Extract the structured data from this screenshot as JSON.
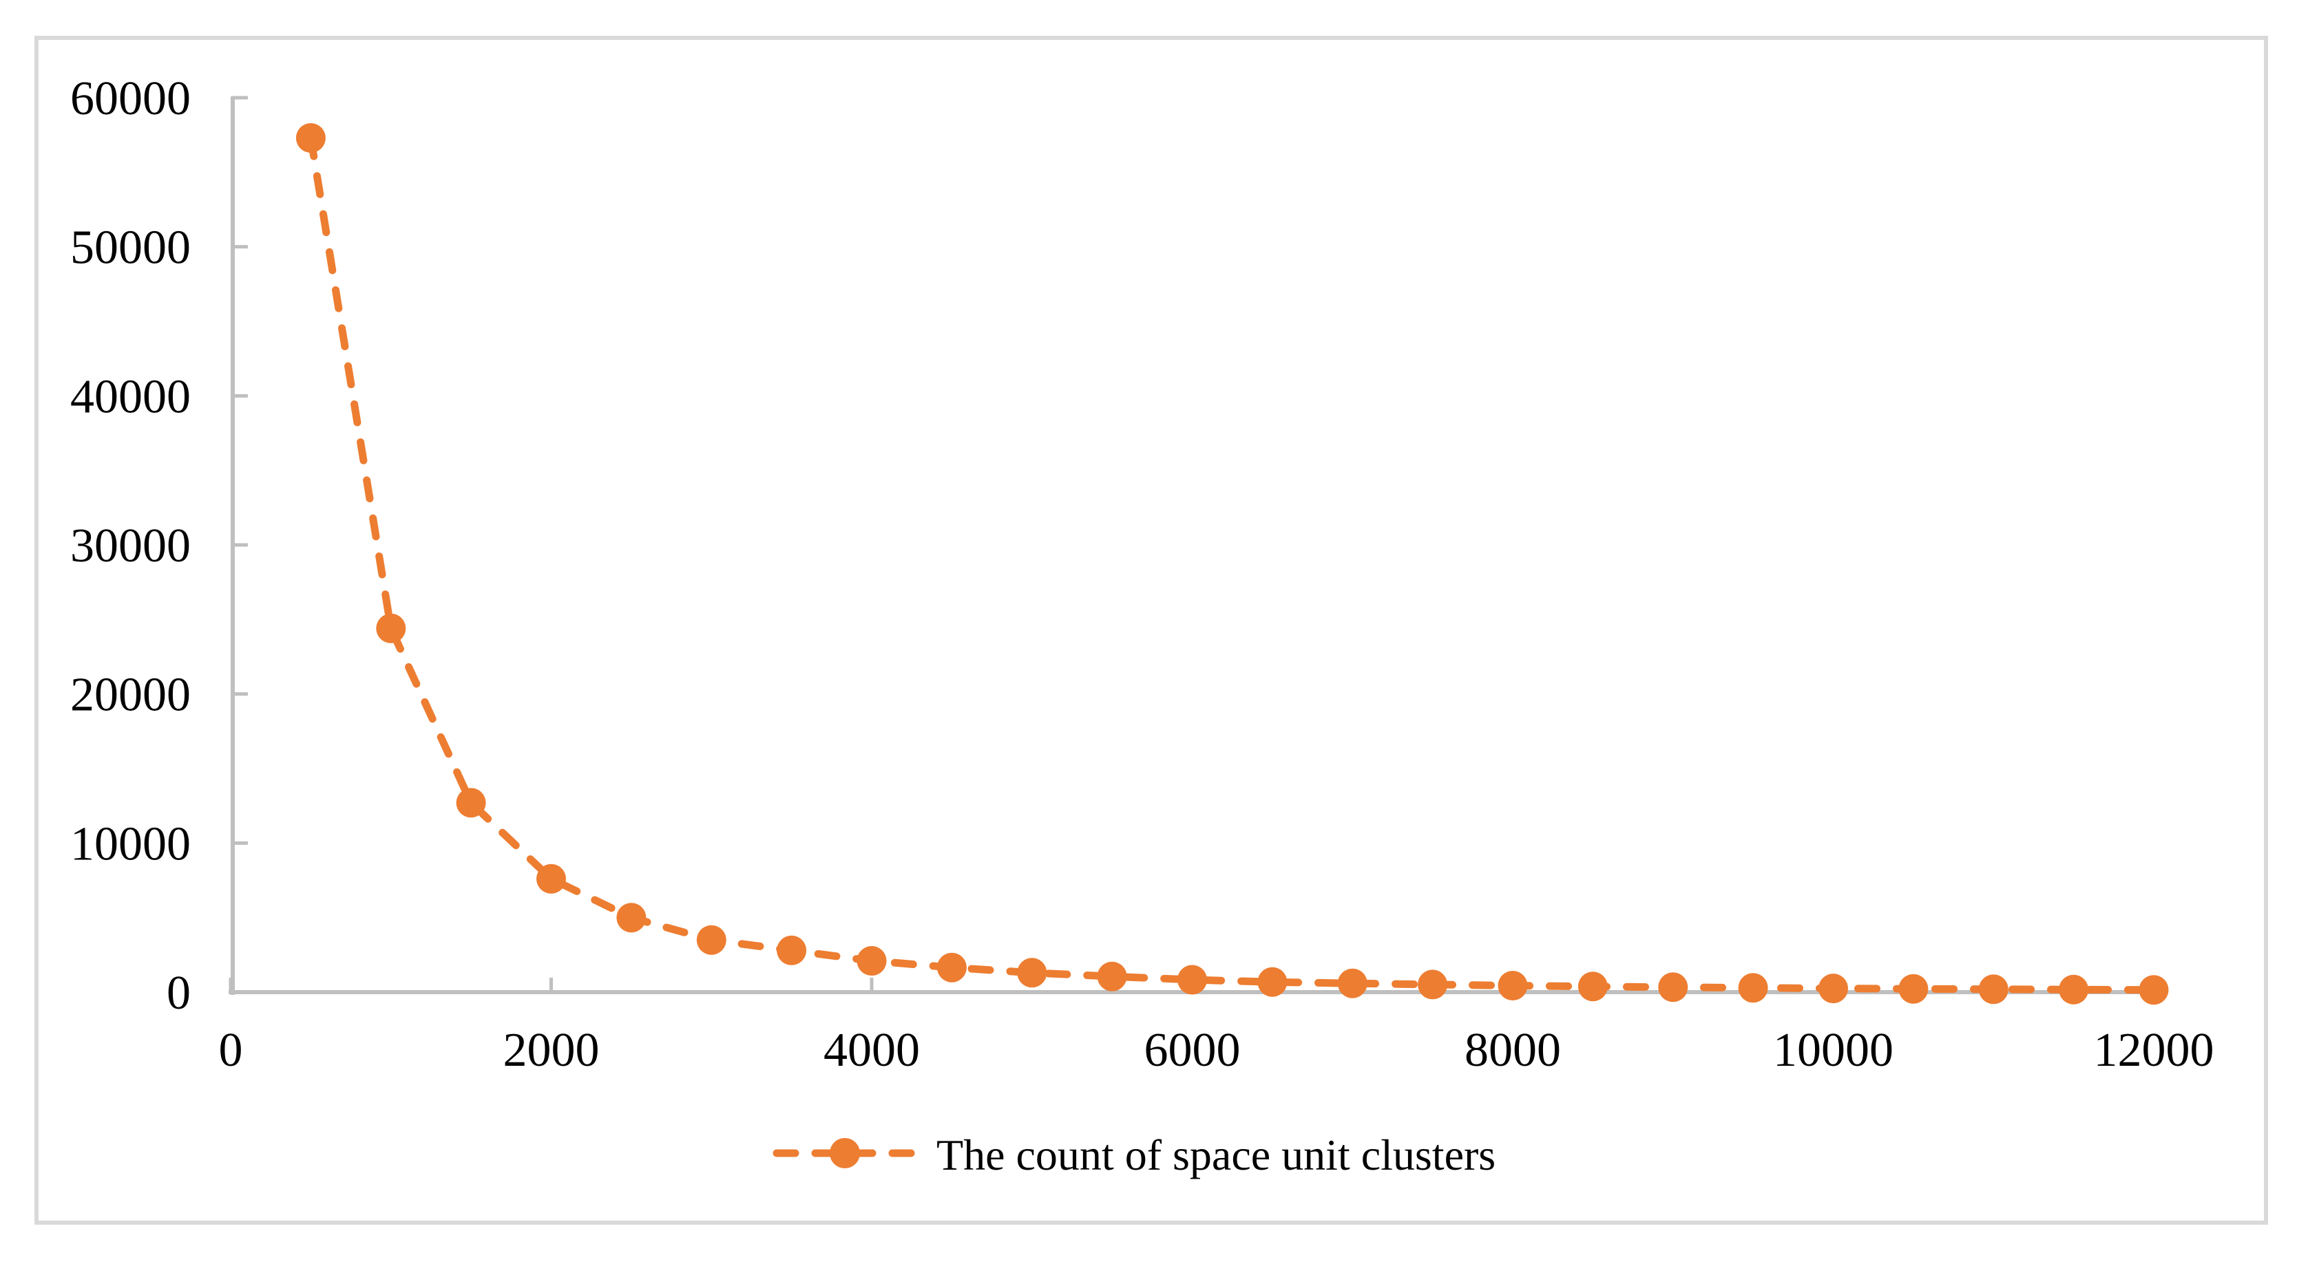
{
  "figure": {
    "kind": "excel-style scatter chart with dashed line and round markers",
    "background": "#FFFFFF"
  },
  "chart_data": {
    "type": "line",
    "title": "",
    "xlabel": "",
    "ylabel": "",
    "x": [
      500,
      1000,
      1500,
      2000,
      2500,
      3000,
      3500,
      4000,
      4500,
      5000,
      5500,
      6000,
      6500,
      7000,
      7500,
      8000,
      8500,
      9000,
      9500,
      10000,
      10500,
      11000,
      11500,
      12000
    ],
    "series": [
      {
        "name": "The count of space unit clusters",
        "values": [
          57300,
          24400,
          12700,
          7600,
          5000,
          3500,
          2800,
          2100,
          1650,
          1300,
          1050,
          830,
          680,
          590,
          510,
          440,
          380,
          330,
          290,
          250,
          220,
          195,
          170,
          150
        ]
      }
    ],
    "xlim": [
      0,
      12000
    ],
    "ylim": [
      0,
      60000
    ],
    "x_ticks": [
      0,
      2000,
      4000,
      6000,
      8000,
      10000,
      12000
    ],
    "y_ticks": [
      0,
      10000,
      20000,
      30000,
      40000,
      50000,
      60000
    ],
    "grid": false,
    "legend_position": "bottom-center",
    "line_style": "dashed",
    "marker": "circle",
    "colors": {
      "series": "#ED7D31",
      "axis": "#BFBFBF",
      "frame": "#D9D9D9",
      "text": "#000000"
    }
  }
}
